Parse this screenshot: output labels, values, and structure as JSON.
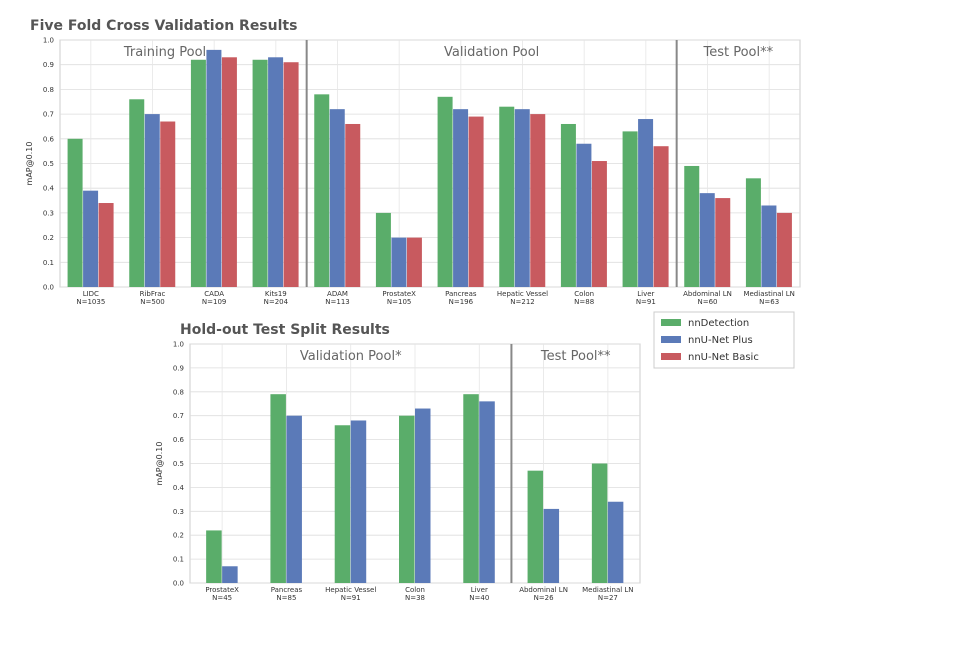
{
  "series_colors": {
    "nnDetection": "#5aad6a",
    "nnU-Net Plus": "#5b7ab8",
    "nnU-Net Basic": "#c85a5f"
  },
  "legend": {
    "items": [
      {
        "name": "nnDetection",
        "color": "#5aad6a"
      },
      {
        "name": "nnU-Net Plus",
        "color": "#5b7ab8"
      },
      {
        "name": "nnU-Net Basic",
        "color": "#c85a5f"
      }
    ]
  },
  "chart_data": [
    {
      "type": "bar",
      "title": "Five Fold Cross Validation Results",
      "ylabel": "mAP@0.10",
      "xlabel": "",
      "ylim": [
        0,
        1.0
      ],
      "yticks": [
        "0.0",
        "0.1",
        "0.2",
        "0.3",
        "0.4",
        "0.5",
        "0.6",
        "0.7",
        "0.8",
        "0.9",
        "1.0"
      ],
      "grid": true,
      "categories": [
        {
          "name": "LIDC",
          "n": "N=1035"
        },
        {
          "name": "RibFrac",
          "n": "N=500"
        },
        {
          "name": "CADA",
          "n": "N=109"
        },
        {
          "name": "Kits19",
          "n": "N=204"
        },
        {
          "name": "ADAM",
          "n": "N=113"
        },
        {
          "name": "ProstateX",
          "n": "N=105"
        },
        {
          "name": "Pancreas",
          "n": "N=196"
        },
        {
          "name": "Hepatic Vessel",
          "n": "N=212"
        },
        {
          "name": "Colon",
          "n": "N=88"
        },
        {
          "name": "Liver",
          "n": "N=91"
        },
        {
          "name": "Abdominal LN",
          "n": "N=60"
        },
        {
          "name": "Mediastinal LN",
          "n": "N=63"
        }
      ],
      "series": [
        {
          "name": "nnDetection",
          "values": [
            0.6,
            0.76,
            0.92,
            0.92,
            0.78,
            0.3,
            0.77,
            0.73,
            0.66,
            0.63,
            0.49,
            0.44
          ]
        },
        {
          "name": "nnU-Net Plus",
          "values": [
            0.39,
            0.7,
            0.96,
            0.93,
            0.72,
            0.2,
            0.72,
            0.72,
            0.58,
            0.68,
            0.38,
            0.33
          ]
        },
        {
          "name": "nnU-Net Basic",
          "values": [
            0.34,
            0.67,
            0.93,
            0.91,
            0.66,
            0.2,
            0.69,
            0.7,
            0.51,
            0.57,
            0.36,
            0.3
          ]
        }
      ],
      "pools": [
        {
          "label": "Training Pool",
          "from": 0,
          "to": 3
        },
        {
          "label": "Validation Pool",
          "from": 4,
          "to": 9
        },
        {
          "label": "Test Pool**",
          "from": 10,
          "to": 11
        }
      ]
    },
    {
      "type": "bar",
      "title": "Hold-out Test Split Results",
      "ylabel": "mAP@0.10",
      "xlabel": "",
      "ylim": [
        0,
        1.0
      ],
      "yticks": [
        "0.0",
        "0.1",
        "0.2",
        "0.3",
        "0.4",
        "0.5",
        "0.6",
        "0.7",
        "0.8",
        "0.9",
        "1.0"
      ],
      "grid": true,
      "categories": [
        {
          "name": "ProstateX",
          "n": "N=45"
        },
        {
          "name": "Pancreas",
          "n": "N=85"
        },
        {
          "name": "Hepatic Vessel",
          "n": "N=91"
        },
        {
          "name": "Colon",
          "n": "N=38"
        },
        {
          "name": "Liver",
          "n": "N=40"
        },
        {
          "name": "Abdominal LN",
          "n": "N=26"
        },
        {
          "name": "Mediastinal LN",
          "n": "N=27"
        }
      ],
      "series": [
        {
          "name": "nnDetection",
          "values": [
            0.22,
            0.79,
            0.66,
            0.7,
            0.79,
            0.47,
            0.5
          ]
        },
        {
          "name": "nnU-Net Plus",
          "values": [
            0.07,
            0.7,
            0.68,
            0.73,
            0.76,
            0.31,
            0.34
          ]
        }
      ],
      "pools": [
        {
          "label": "Validation Pool*",
          "from": 0,
          "to": 4
        },
        {
          "label": "Test Pool**",
          "from": 5,
          "to": 6
        }
      ]
    }
  ]
}
